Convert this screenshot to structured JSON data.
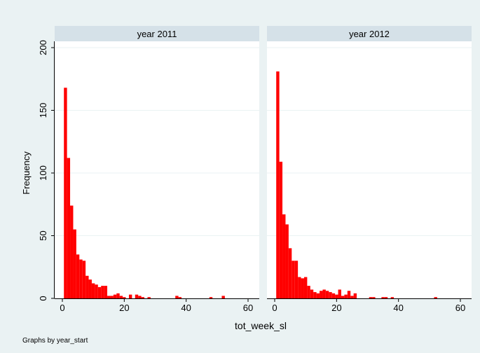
{
  "chart_data": {
    "type": "bar",
    "ylabel": "Frequency",
    "xlabel": "tot_week_sl",
    "note": "Graphs by year_start",
    "xlim": [
      0,
      60
    ],
    "ylim": [
      0,
      200
    ],
    "x_ticks": [
      0,
      20,
      40,
      60
    ],
    "y_ticks": [
      0,
      50,
      100,
      150,
      200
    ],
    "bin_width": 1,
    "bar_color": "#ff0000",
    "panels": [
      {
        "title": "year 2011",
        "bins": [
          {
            "x": 1,
            "y": 168
          },
          {
            "x": 2,
            "y": 112
          },
          {
            "x": 3,
            "y": 74
          },
          {
            "x": 4,
            "y": 55
          },
          {
            "x": 5,
            "y": 35
          },
          {
            "x": 6,
            "y": 31
          },
          {
            "x": 7,
            "y": 30
          },
          {
            "x": 8,
            "y": 18
          },
          {
            "x": 9,
            "y": 15
          },
          {
            "x": 10,
            "y": 12
          },
          {
            "x": 11,
            "y": 11
          },
          {
            "x": 12,
            "y": 9
          },
          {
            "x": 13,
            "y": 10
          },
          {
            "x": 14,
            "y": 10
          },
          {
            "x": 15,
            "y": 2
          },
          {
            "x": 16,
            "y": 2
          },
          {
            "x": 17,
            "y": 3
          },
          {
            "x": 18,
            "y": 4
          },
          {
            "x": 19,
            "y": 2
          },
          {
            "x": 20,
            "y": 1
          },
          {
            "x": 22,
            "y": 3
          },
          {
            "x": 24,
            "y": 3
          },
          {
            "x": 25,
            "y": 2
          },
          {
            "x": 26,
            "y": 1
          },
          {
            "x": 28,
            "y": 1
          },
          {
            "x": 37,
            "y": 2
          },
          {
            "x": 38,
            "y": 1
          },
          {
            "x": 48,
            "y": 1
          },
          {
            "x": 52,
            "y": 2
          }
        ]
      },
      {
        "title": "year 2012",
        "bins": [
          {
            "x": 1,
            "y": 181
          },
          {
            "x": 2,
            "y": 109
          },
          {
            "x": 3,
            "y": 67
          },
          {
            "x": 4,
            "y": 59
          },
          {
            "x": 5,
            "y": 40
          },
          {
            "x": 6,
            "y": 30
          },
          {
            "x": 7,
            "y": 30
          },
          {
            "x": 8,
            "y": 17
          },
          {
            "x": 9,
            "y": 16
          },
          {
            "x": 10,
            "y": 17
          },
          {
            "x": 11,
            "y": 10
          },
          {
            "x": 12,
            "y": 7
          },
          {
            "x": 13,
            "y": 5
          },
          {
            "x": 14,
            "y": 4
          },
          {
            "x": 15,
            "y": 6
          },
          {
            "x": 16,
            "y": 7
          },
          {
            "x": 17,
            "y": 6
          },
          {
            "x": 18,
            "y": 5
          },
          {
            "x": 19,
            "y": 4
          },
          {
            "x": 20,
            "y": 3
          },
          {
            "x": 21,
            "y": 7
          },
          {
            "x": 22,
            "y": 2
          },
          {
            "x": 23,
            "y": 3
          },
          {
            "x": 24,
            "y": 6
          },
          {
            "x": 25,
            "y": 2
          },
          {
            "x": 26,
            "y": 4
          },
          {
            "x": 31,
            "y": 1
          },
          {
            "x": 32,
            "y": 1
          },
          {
            "x": 35,
            "y": 1
          },
          {
            "x": 36,
            "y": 1
          },
          {
            "x": 38,
            "y": 1
          },
          {
            "x": 52,
            "y": 1
          }
        ]
      }
    ],
    "grid": true,
    "legend": "none"
  }
}
